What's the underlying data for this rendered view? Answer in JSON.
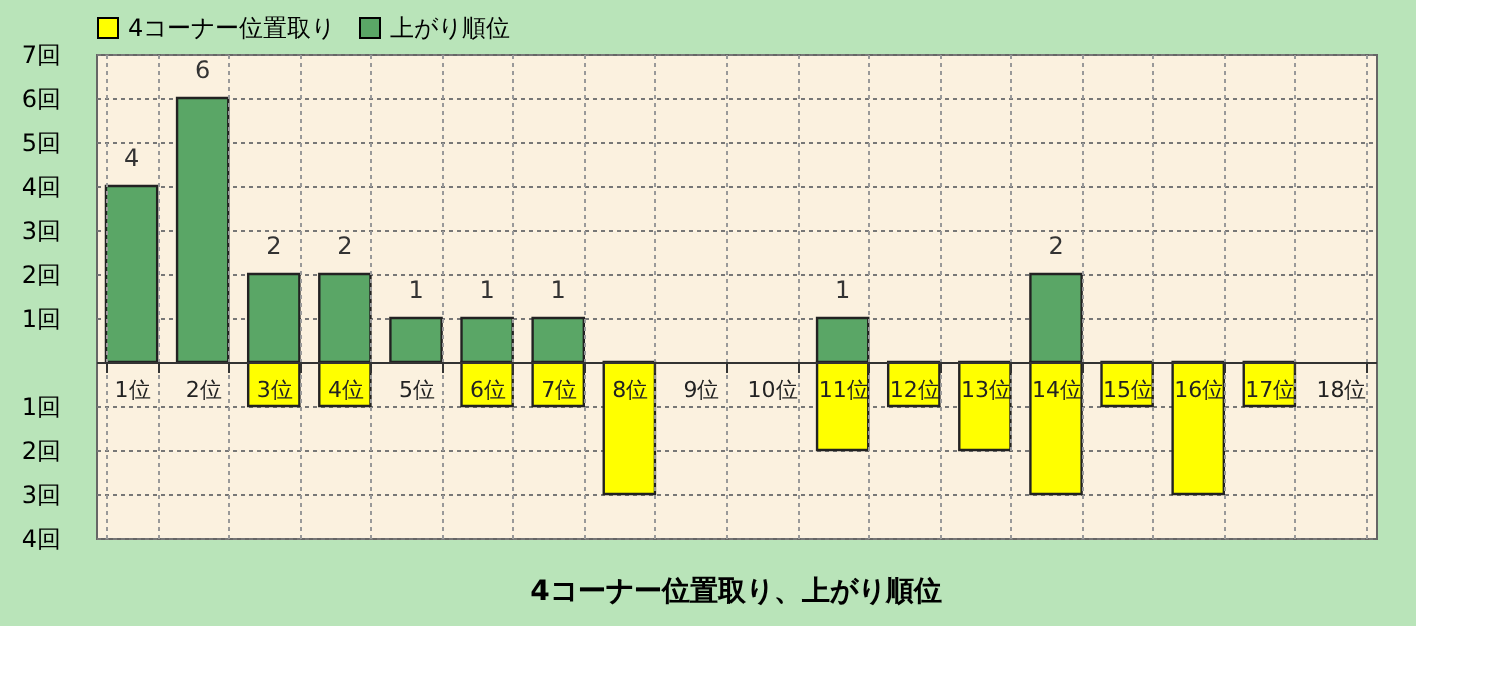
{
  "chart_data": {
    "type": "bar",
    "title": "4コーナー位置取り、上がり順位",
    "categories": [
      "1位",
      "2位",
      "3位",
      "4位",
      "5位",
      "6位",
      "7位",
      "8位",
      "9位",
      "10位",
      "11位",
      "12位",
      "13位",
      "14位",
      "15位",
      "16位",
      "17位",
      "18位"
    ],
    "series": [
      {
        "name": "4コーナー位置取り",
        "color": "#ffff00",
        "values": [
          null,
          null,
          -1,
          -1,
          null,
          -1,
          -1,
          -3,
          null,
          null,
          -2,
          -1,
          -2,
          -3,
          -1,
          -3,
          -1,
          null
        ]
      },
      {
        "name": "上がり順位",
        "color": "#5aa666",
        "values": [
          4,
          6,
          2,
          2,
          1,
          1,
          1,
          null,
          null,
          null,
          1,
          null,
          null,
          2,
          null,
          null,
          null,
          null
        ],
        "value_labels": [
          "4",
          "6",
          "2",
          "2",
          "1",
          "1",
          "1",
          null,
          null,
          null,
          "1",
          null,
          null,
          "2",
          null,
          null,
          null,
          null
        ]
      }
    ],
    "ylim": [
      -4,
      7
    ],
    "yticks": [
      {
        "value": 7,
        "label": "7回"
      },
      {
        "value": 6,
        "label": "6回"
      },
      {
        "value": 5,
        "label": "5回"
      },
      {
        "value": 4,
        "label": "4回"
      },
      {
        "value": 3,
        "label": "3回"
      },
      {
        "value": 2,
        "label": "2回"
      },
      {
        "value": 1,
        "label": "1回"
      },
      {
        "value": 0,
        "label": null
      },
      {
        "value": -1,
        "label": "1回"
      },
      {
        "value": -2,
        "label": "2回"
      },
      {
        "value": -3,
        "label": "3回"
      },
      {
        "value": -4,
        "label": "4回"
      }
    ],
    "grid": true,
    "legend": "top left"
  }
}
